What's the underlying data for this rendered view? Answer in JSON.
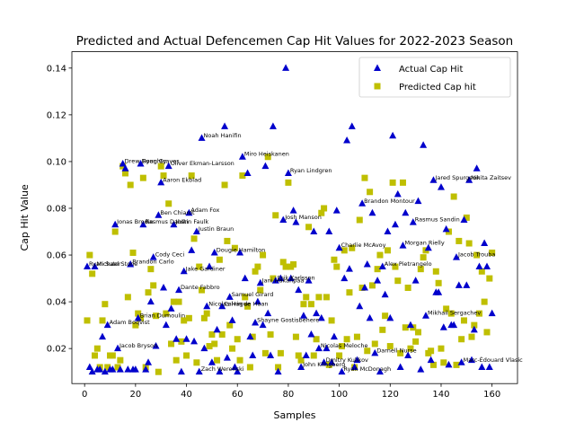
{
  "chart_data": {
    "type": "scatter",
    "title": "Predicted and Actual Defencemen Cap Hit Values for 2022-2023 Season",
    "xlabel": "Samples",
    "ylabel": "Cap Hit Value",
    "xlim": [
      -5,
      170
    ],
    "ylim": [
      0.005,
      0.147
    ],
    "xticks": [
      0,
      20,
      40,
      60,
      80,
      100,
      120,
      140,
      160
    ],
    "yticks": [
      0.02,
      0.04,
      0.06,
      0.08,
      0.1,
      0.12,
      0.14
    ],
    "ytick_labels": [
      "0.02",
      "0.04",
      "0.06",
      "0.08",
      "0.10",
      "0.12",
      "0.14"
    ],
    "grid": false,
    "legend": {
      "position": "top-right",
      "entries": [
        "Actual Cap Hit",
        "Predicted Cap hit"
      ]
    },
    "colors": {
      "actual": "#0000cc",
      "predicted": "#bfbf00"
    },
    "series": [
      {
        "name": "Actual Cap Hit",
        "marker": "triangle",
        "x": [
          1,
          2,
          3,
          4,
          5,
          6,
          7,
          8,
          9,
          10,
          11,
          12,
          13,
          14,
          15,
          16,
          17,
          18,
          19,
          20,
          21,
          22,
          23,
          24,
          25,
          26,
          27,
          28,
          29,
          30,
          31,
          32,
          33,
          34,
          35,
          36,
          37,
          38,
          39,
          40,
          41,
          42,
          43,
          44,
          45,
          46,
          47,
          48,
          49,
          50,
          51,
          52,
          53,
          54,
          55,
          56,
          57,
          58,
          59,
          60,
          61,
          62,
          63,
          64,
          65,
          66,
          67,
          68,
          69,
          70,
          71,
          72,
          73,
          74,
          75,
          76,
          77,
          78,
          79,
          80,
          81,
          82,
          83,
          84,
          85,
          86,
          87,
          88,
          89,
          90,
          91,
          92,
          93,
          94,
          95,
          96,
          97,
          98,
          99,
          100,
          101,
          102,
          103,
          104,
          105,
          106,
          107,
          108,
          109,
          110,
          111,
          112,
          113,
          114,
          115,
          116,
          117,
          118,
          119,
          120,
          121,
          122,
          123,
          124,
          125,
          126,
          127,
          128,
          129,
          130,
          131,
          132,
          133,
          134,
          135,
          136,
          137,
          138,
          139,
          140,
          141,
          142,
          143,
          144,
          145,
          146,
          147,
          148,
          149,
          150,
          151,
          152,
          153,
          154,
          155,
          156,
          157,
          158,
          159,
          160
        ],
        "y": [
          0.055,
          0.012,
          0.01,
          0.055,
          0.011,
          0.011,
          0.025,
          0.01,
          0.03,
          0.011,
          0.011,
          0.073,
          0.02,
          0.011,
          0.099,
          0.097,
          0.011,
          0.056,
          0.011,
          0.011,
          0.033,
          0.099,
          0.073,
          0.011,
          0.014,
          0.04,
          0.059,
          0.021,
          0.077,
          0.091,
          0.046,
          0.03,
          0.098,
          0.037,
          0.073,
          0.024,
          0.045,
          0.01,
          0.053,
          0.024,
          0.078,
          0.062,
          0.023,
          0.07,
          0.01,
          0.11,
          0.02,
          0.038,
          0.055,
          0.014,
          0.061,
          0.028,
          0.01,
          0.038,
          0.115,
          0.016,
          0.042,
          0.032,
          0.012,
          0.01,
          0.061,
          0.102,
          0.05,
          0.095,
          0.025,
          0.017,
          0.031,
          0.04,
          0.048,
          0.03,
          0.098,
          0.035,
          0.017,
          0.115,
          0.049,
          0.01,
          0.05,
          0.075,
          0.14,
          0.095,
          0.05,
          0.079,
          0.074,
          0.045,
          0.012,
          0.034,
          0.017,
          0.049,
          0.026,
          0.07,
          0.035,
          0.02,
          0.033,
          0.014,
          0.02,
          0.07,
          0.014,
          0.025,
          0.079,
          0.063,
          0.01,
          0.05,
          0.109,
          0.054,
          0.115,
          0.012,
          0.015,
          0.038,
          0.082,
          0.046,
          0.056,
          0.033,
          0.078,
          0.018,
          0.049,
          0.01,
          0.055,
          0.043,
          0.07,
          0.033,
          0.111,
          0.073,
          0.086,
          0.012,
          0.064,
          0.078,
          0.017,
          0.03,
          0.074,
          0.049,
          0.083,
          0.011,
          0.107,
          0.034,
          0.063,
          0.015,
          0.092,
          0.044,
          0.044,
          0.089,
          0.029,
          0.071,
          0.013,
          0.03,
          0.03,
          0.059,
          0.047,
          0.014,
          0.075,
          0.047,
          0.092,
          0.015,
          0.028,
          0.097,
          0.055,
          0.012,
          0.065,
          0.055,
          0.012,
          0.035
        ],
        "labels": [
          "Ryan Suter",
          "",
          "",
          "Michael Stone",
          "",
          "",
          "",
          "",
          "Adam Boqvist",
          "",
          "",
          "Jonas Brodin",
          "Jacob Bryson",
          "",
          "Drew Doughty",
          "",
          "",
          "Brandon Carlo",
          "",
          "",
          "Brian Dumoulin",
          "Ryan Graves",
          "Rasmus Dahlin",
          "",
          "",
          "",
          "Cody Ceci",
          "",
          "Ben Chiarot",
          "Aaron Ekblad",
          "",
          "",
          "Oliver Ekman-Larsson",
          "",
          "Justin Faulk",
          "",
          "Dante Fabbro",
          "",
          "Jake Gardiner",
          "",
          "Adam Fox",
          "",
          "",
          "Justin Braun",
          "Zach Werenski",
          "Noah Hanifin",
          "",
          "Nicolas Hague",
          "",
          "",
          "Dougie Hamilton",
          "",
          "",
          "Calvin de Haan",
          "",
          "",
          "Samuel Girard",
          "",
          "",
          "",
          "",
          "Miro Heiskanen",
          "",
          "",
          "",
          "",
          "Shayne Gostisbehere",
          "",
          "Jani Hakanpää",
          "",
          "",
          "",
          "",
          "",
          "Erik Karlsson",
          "",
          "",
          "Josh Manson",
          "",
          "Ryan Lindgren",
          "",
          "",
          "",
          "",
          "John Klingberg",
          "",
          "",
          "",
          "",
          "",
          "",
          "Nicolas Meloche",
          "",
          "Dmitry Kulikov",
          "",
          "",
          "",
          "",
          "",
          "Charlie McAvoy",
          "Ryan McDonagh",
          "",
          "",
          "",
          "",
          "",
          "",
          "",
          "Brandon Montour",
          "",
          "",
          "",
          "",
          "Darnell Nurse",
          "",
          "",
          "Alex Pietrangelo",
          "",
          "",
          "",
          "",
          "",
          "",
          "",
          "Morgan Rielly",
          "",
          "",
          "",
          "Rasmus Sandin",
          "",
          "",
          "",
          "",
          "Mikhail Sergachev",
          "",
          "",
          "Jared Spurgeon",
          "",
          "",
          "",
          "",
          "",
          "",
          "",
          "",
          "Jacob Trouba",
          "",
          "Marc-Édouard Vlasic",
          "",
          "",
          "Nikita Zaitsev",
          "",
          "",
          "",
          "",
          "",
          "",
          "",
          "",
          ""
        ]
      },
      {
        "name": "Predicted Cap hit",
        "marker": "square",
        "x": [
          1,
          2,
          3,
          4,
          5,
          6,
          7,
          8,
          9,
          10,
          11,
          12,
          13,
          14,
          15,
          16,
          17,
          18,
          19,
          20,
          21,
          22,
          23,
          24,
          25,
          26,
          27,
          28,
          29,
          30,
          31,
          32,
          33,
          34,
          35,
          36,
          37,
          38,
          39,
          40,
          41,
          42,
          43,
          44,
          45,
          46,
          47,
          48,
          49,
          50,
          51,
          52,
          53,
          54,
          55,
          56,
          57,
          58,
          59,
          60,
          61,
          62,
          63,
          64,
          65,
          66,
          67,
          68,
          69,
          70,
          71,
          72,
          73,
          74,
          75,
          76,
          77,
          78,
          79,
          80,
          81,
          82,
          83,
          84,
          85,
          86,
          87,
          88,
          89,
          90,
          91,
          92,
          93,
          94,
          95,
          96,
          97,
          98,
          99,
          100,
          101,
          102,
          103,
          104,
          105,
          106,
          107,
          108,
          109,
          110,
          111,
          112,
          113,
          114,
          115,
          116,
          117,
          118,
          119,
          120,
          121,
          122,
          123,
          124,
          125,
          126,
          127,
          128,
          129,
          130,
          131,
          132,
          133,
          134,
          135,
          136,
          137,
          138,
          139,
          140,
          141,
          142,
          143,
          144,
          145,
          146,
          147,
          148,
          149,
          150,
          151,
          152,
          153,
          154,
          155,
          156,
          157,
          158,
          159,
          160
        ],
        "y": [
          0.032,
          0.06,
          0.052,
          0.017,
          0.02,
          0.012,
          0.032,
          0.039,
          0.012,
          0.017,
          0.017,
          0.07,
          0.012,
          0.015,
          0.098,
          0.095,
          0.042,
          0.09,
          0.061,
          0.03,
          0.035,
          0.033,
          0.093,
          0.012,
          0.044,
          0.054,
          0.047,
          0.034,
          0.01,
          0.098,
          0.094,
          0.035,
          0.082,
          0.022,
          0.04,
          0.015,
          0.04,
          0.023,
          0.032,
          0.017,
          0.033,
          0.094,
          0.067,
          0.014,
          0.055,
          0.045,
          0.033,
          0.035,
          0.021,
          0.026,
          0.022,
          0.015,
          0.058,
          0.026,
          0.09,
          0.066,
          0.03,
          0.02,
          0.063,
          0.024,
          0.015,
          0.094,
          0.042,
          0.038,
          0.012,
          0.025,
          0.053,
          0.055,
          0.045,
          0.06,
          0.018,
          0.102,
          0.026,
          0.05,
          0.077,
          0.012,
          0.018,
          0.057,
          0.055,
          0.091,
          0.055,
          0.056,
          0.025,
          0.017,
          0.015,
          0.039,
          0.042,
          0.072,
          0.039,
          0.017,
          0.024,
          0.042,
          0.078,
          0.08,
          0.042,
          0.013,
          0.032,
          0.058,
          0.055,
          0.017,
          0.021,
          0.062,
          0.024,
          0.044,
          0.063,
          0.012,
          0.025,
          0.075,
          0.046,
          0.093,
          0.019,
          0.087,
          0.047,
          0.022,
          0.054,
          0.06,
          0.028,
          0.034,
          0.062,
          0.021,
          0.091,
          0.055,
          0.049,
          0.018,
          0.091,
          0.029,
          0.046,
          0.02,
          0.029,
          0.023,
          0.027,
          0.054,
          0.059,
          0.062,
          0.018,
          0.019,
          0.013,
          0.053,
          0.048,
          0.02,
          0.014,
          0.037,
          0.07,
          0.035,
          0.085,
          0.013,
          0.066,
          0.024,
          0.032,
          0.076,
          0.065,
          0.025,
          0.03,
          0.06,
          0.035,
          0.053,
          0.04,
          0.027,
          0.05,
          0.061
        ]
      }
    ]
  }
}
